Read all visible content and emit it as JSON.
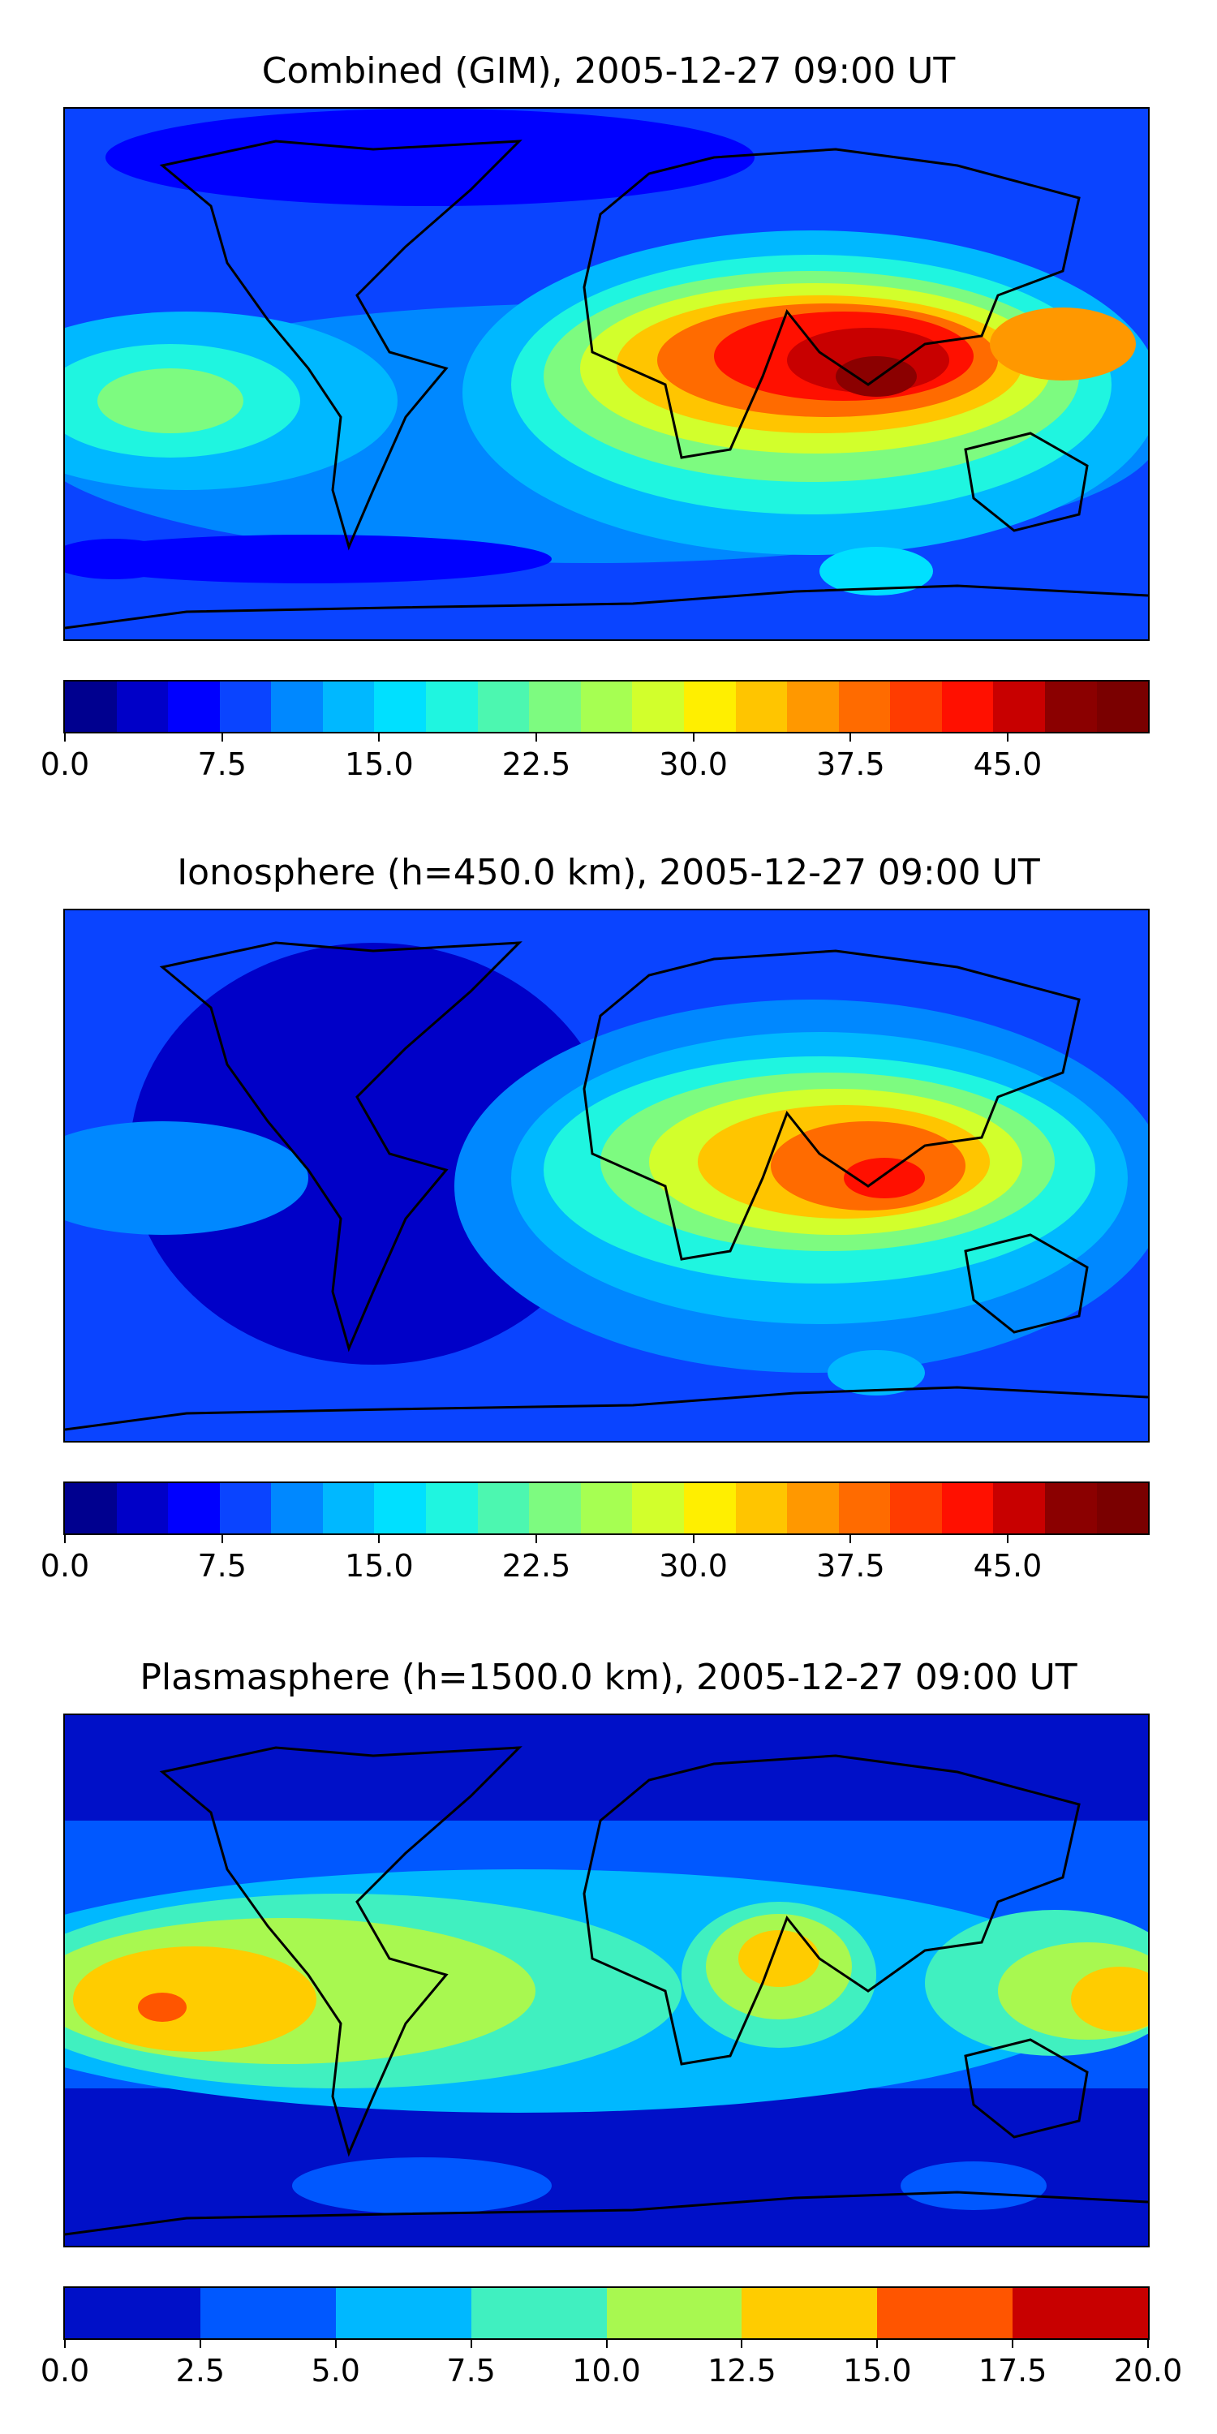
{
  "panels": [
    {
      "title": "Combined (GIM), 2005-12-27 09:00 UT",
      "colorbar": {
        "ticks": [
          "0.0",
          "7.5",
          "15.0",
          "22.5",
          "30.0",
          "37.5",
          "45.0"
        ],
        "tick_values": [
          0,
          7.5,
          15,
          22.5,
          30,
          37.5,
          45
        ],
        "min": 0,
        "max": 51.7,
        "step": 2.5,
        "colors": [
          "#00008f",
          "#0000c8",
          "#0000ff",
          "#0a44ff",
          "#0088ff",
          "#00b8ff",
          "#00e0ff",
          "#1ff5e0",
          "#4cf7b0",
          "#7dfb80",
          "#a6ff52",
          "#d2ff2c",
          "#ffef00",
          "#ffc500",
          "#ff9800",
          "#ff6b00",
          "#ff3c00",
          "#ff1000",
          "#c80000",
          "#8b0000",
          "#7a0000"
        ]
      }
    },
    {
      "title": "Ionosphere  (h=450.0 km), 2005-12-27 09:00 UT",
      "colorbar": {
        "ticks": [
          "0.0",
          "7.5",
          "15.0",
          "22.5",
          "30.0",
          "37.5",
          "45.0"
        ],
        "tick_values": [
          0,
          7.5,
          15,
          22.5,
          30,
          37.5,
          45
        ],
        "min": 0,
        "max": 51.7,
        "step": 2.5,
        "colors": [
          "#00008f",
          "#0000c8",
          "#0000ff",
          "#0a44ff",
          "#0088ff",
          "#00b8ff",
          "#00e0ff",
          "#1ff5e0",
          "#4cf7b0",
          "#7dfb80",
          "#a6ff52",
          "#d2ff2c",
          "#ffef00",
          "#ffc500",
          "#ff9800",
          "#ff6b00",
          "#ff3c00",
          "#ff1000",
          "#c80000",
          "#8b0000",
          "#7a0000"
        ]
      }
    },
    {
      "title": "Plasmasphere (h=1500.0 km), 2005-12-27 09:00 UT",
      "colorbar": {
        "ticks": [
          "0.0",
          "2.5",
          "5.0",
          "7.5",
          "10.0",
          "12.5",
          "15.0",
          "17.5",
          "20.0"
        ],
        "tick_values": [
          0,
          2.5,
          5,
          7.5,
          10,
          12.5,
          15,
          17.5,
          20
        ],
        "min": 0,
        "max": 20,
        "step": 2.5,
        "colors": [
          "#0010c8",
          "#0058ff",
          "#00b8ff",
          "#40f0c0",
          "#a8f850",
          "#ffcc00",
          "#ff5500",
          "#c80000"
        ]
      }
    }
  ]
}
